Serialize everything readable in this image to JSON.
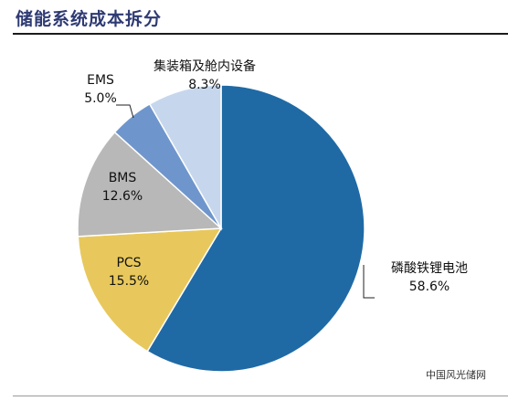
{
  "page": {
    "title": "储能系统成本拆分",
    "watermark": "中国风光储网"
  },
  "chart_data": {
    "type": "pie",
    "title": "储能系统成本拆分",
    "unit": "%",
    "slices": [
      {
        "name": "磷酸铁锂电池",
        "value": 58.6,
        "label": "58.6%",
        "color": "#1f6aa5"
      },
      {
        "name": "PCS",
        "value": 15.5,
        "label": "15.5%",
        "color": "#e8c85c"
      },
      {
        "name": "BMS",
        "value": 12.6,
        "label": "12.6%",
        "color": "#b8b8b8"
      },
      {
        "name": "EMS",
        "value": 5.0,
        "label": "5.0%",
        "color": "#6f96cc"
      },
      {
        "name": "集装箱及舱内设备",
        "value": 8.3,
        "label": "8.3%",
        "color": "#c6d7ed"
      }
    ]
  }
}
